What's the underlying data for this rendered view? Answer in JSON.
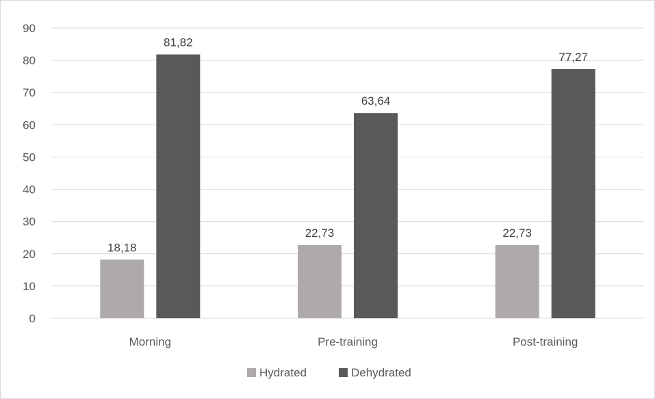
{
  "chart_data": {
    "type": "bar",
    "title": "",
    "xlabel": "",
    "ylabel": "",
    "categories": [
      "Morning",
      "Pre-training",
      "Post-training"
    ],
    "series": [
      {
        "name": "Hydrated",
        "color": "#aeaaaa",
        "values": [
          18.18,
          22.73,
          22.73
        ],
        "labels": [
          "18,18",
          "22,73",
          "22,73"
        ]
      },
      {
        "name": "Dehydrated",
        "color": "#595959",
        "values": [
          81.82,
          63.64,
          77.27
        ],
        "labels": [
          "81,82",
          "63,64",
          "77,27"
        ]
      }
    ],
    "ylim": [
      0,
      90
    ],
    "yticks": [
      0,
      10,
      20,
      30,
      40,
      50,
      60,
      70,
      80,
      90
    ],
    "grid": true,
    "legend": "bottom"
  }
}
